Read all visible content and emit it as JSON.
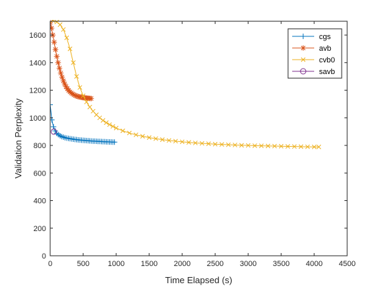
{
  "chart_data": {
    "type": "line",
    "title": "",
    "xlabel": "Time Elapsed (s)",
    "ylabel": "Validation Perplexity",
    "xlim": [
      0,
      4500
    ],
    "ylim": [
      0,
      1700
    ],
    "xticks": [
      0,
      500,
      1000,
      1500,
      2000,
      2500,
      3000,
      3500,
      4000,
      4500
    ],
    "yticks": [
      0,
      200,
      400,
      600,
      800,
      1000,
      1200,
      1400,
      1600
    ],
    "grid": false,
    "legend_position": "top-right",
    "series": [
      {
        "name": "cgs",
        "color": "#0072BD",
        "marker": "plus",
        "x": [
          0,
          25,
          50,
          75,
          100,
          125,
          150,
          175,
          200,
          225,
          250,
          275,
          300,
          325,
          350,
          375,
          400,
          425,
          450,
          475,
          500,
          525,
          550,
          575,
          600,
          625,
          650,
          675,
          700,
          725,
          750,
          775,
          800,
          825,
          850,
          875,
          900,
          925,
          950,
          975
        ],
        "y": [
          1095,
          985,
          935,
          905,
          888,
          878,
          870,
          864,
          860,
          856,
          853,
          851,
          849,
          847,
          845,
          843,
          842,
          840,
          839,
          838,
          837,
          836,
          835,
          834,
          833,
          832,
          831,
          831,
          830,
          829,
          829,
          828,
          827,
          827,
          826,
          826,
          825,
          825,
          824,
          824
        ]
      },
      {
        "name": "avb",
        "color": "#D95319",
        "marker": "asterisk",
        "x": [
          0,
          20,
          40,
          60,
          80,
          100,
          120,
          140,
          160,
          180,
          200,
          220,
          240,
          260,
          280,
          300,
          320,
          340,
          360,
          380,
          400,
          420,
          440,
          460,
          480,
          500,
          520,
          540,
          560,
          580,
          600,
          620
        ],
        "y": [
          1690,
          1650,
          1600,
          1548,
          1495,
          1445,
          1400,
          1360,
          1325,
          1295,
          1268,
          1245,
          1226,
          1211,
          1198,
          1188,
          1180,
          1173,
          1167,
          1162,
          1158,
          1155,
          1152,
          1150,
          1148,
          1146,
          1145,
          1144,
          1143,
          1142,
          1141,
          1140
        ]
      },
      {
        "name": "cvb0",
        "color": "#EDB120",
        "marker": "x",
        "x": [
          40,
          100,
          150,
          200,
          250,
          300,
          350,
          400,
          450,
          500,
          550,
          600,
          650,
          700,
          750,
          800,
          850,
          900,
          950,
          1000,
          1100,
          1200,
          1300,
          1400,
          1500,
          1600,
          1700,
          1800,
          1900,
          2000,
          2100,
          2200,
          2300,
          2400,
          2500,
          2600,
          2700,
          2800,
          2900,
          3000,
          3100,
          3200,
          3300,
          3400,
          3500,
          3600,
          3700,
          3800,
          3900,
          4000,
          4070
        ],
        "y": [
          1705,
          1695,
          1675,
          1640,
          1580,
          1500,
          1400,
          1300,
          1220,
          1160,
          1115,
          1078,
          1048,
          1022,
          1000,
          981,
          965,
          951,
          938,
          926,
          906,
          890,
          877,
          866,
          857,
          849,
          842,
          836,
          831,
          826,
          822,
          818,
          815,
          812,
          809,
          807,
          805,
          803,
          801,
          800,
          798,
          797,
          796,
          795,
          794,
          793,
          792,
          791,
          790,
          789,
          789
        ]
      },
      {
        "name": "savb",
        "color": "#7E2F8E",
        "marker": "circle",
        "x": [
          55
        ],
        "y": [
          900
        ]
      }
    ]
  }
}
